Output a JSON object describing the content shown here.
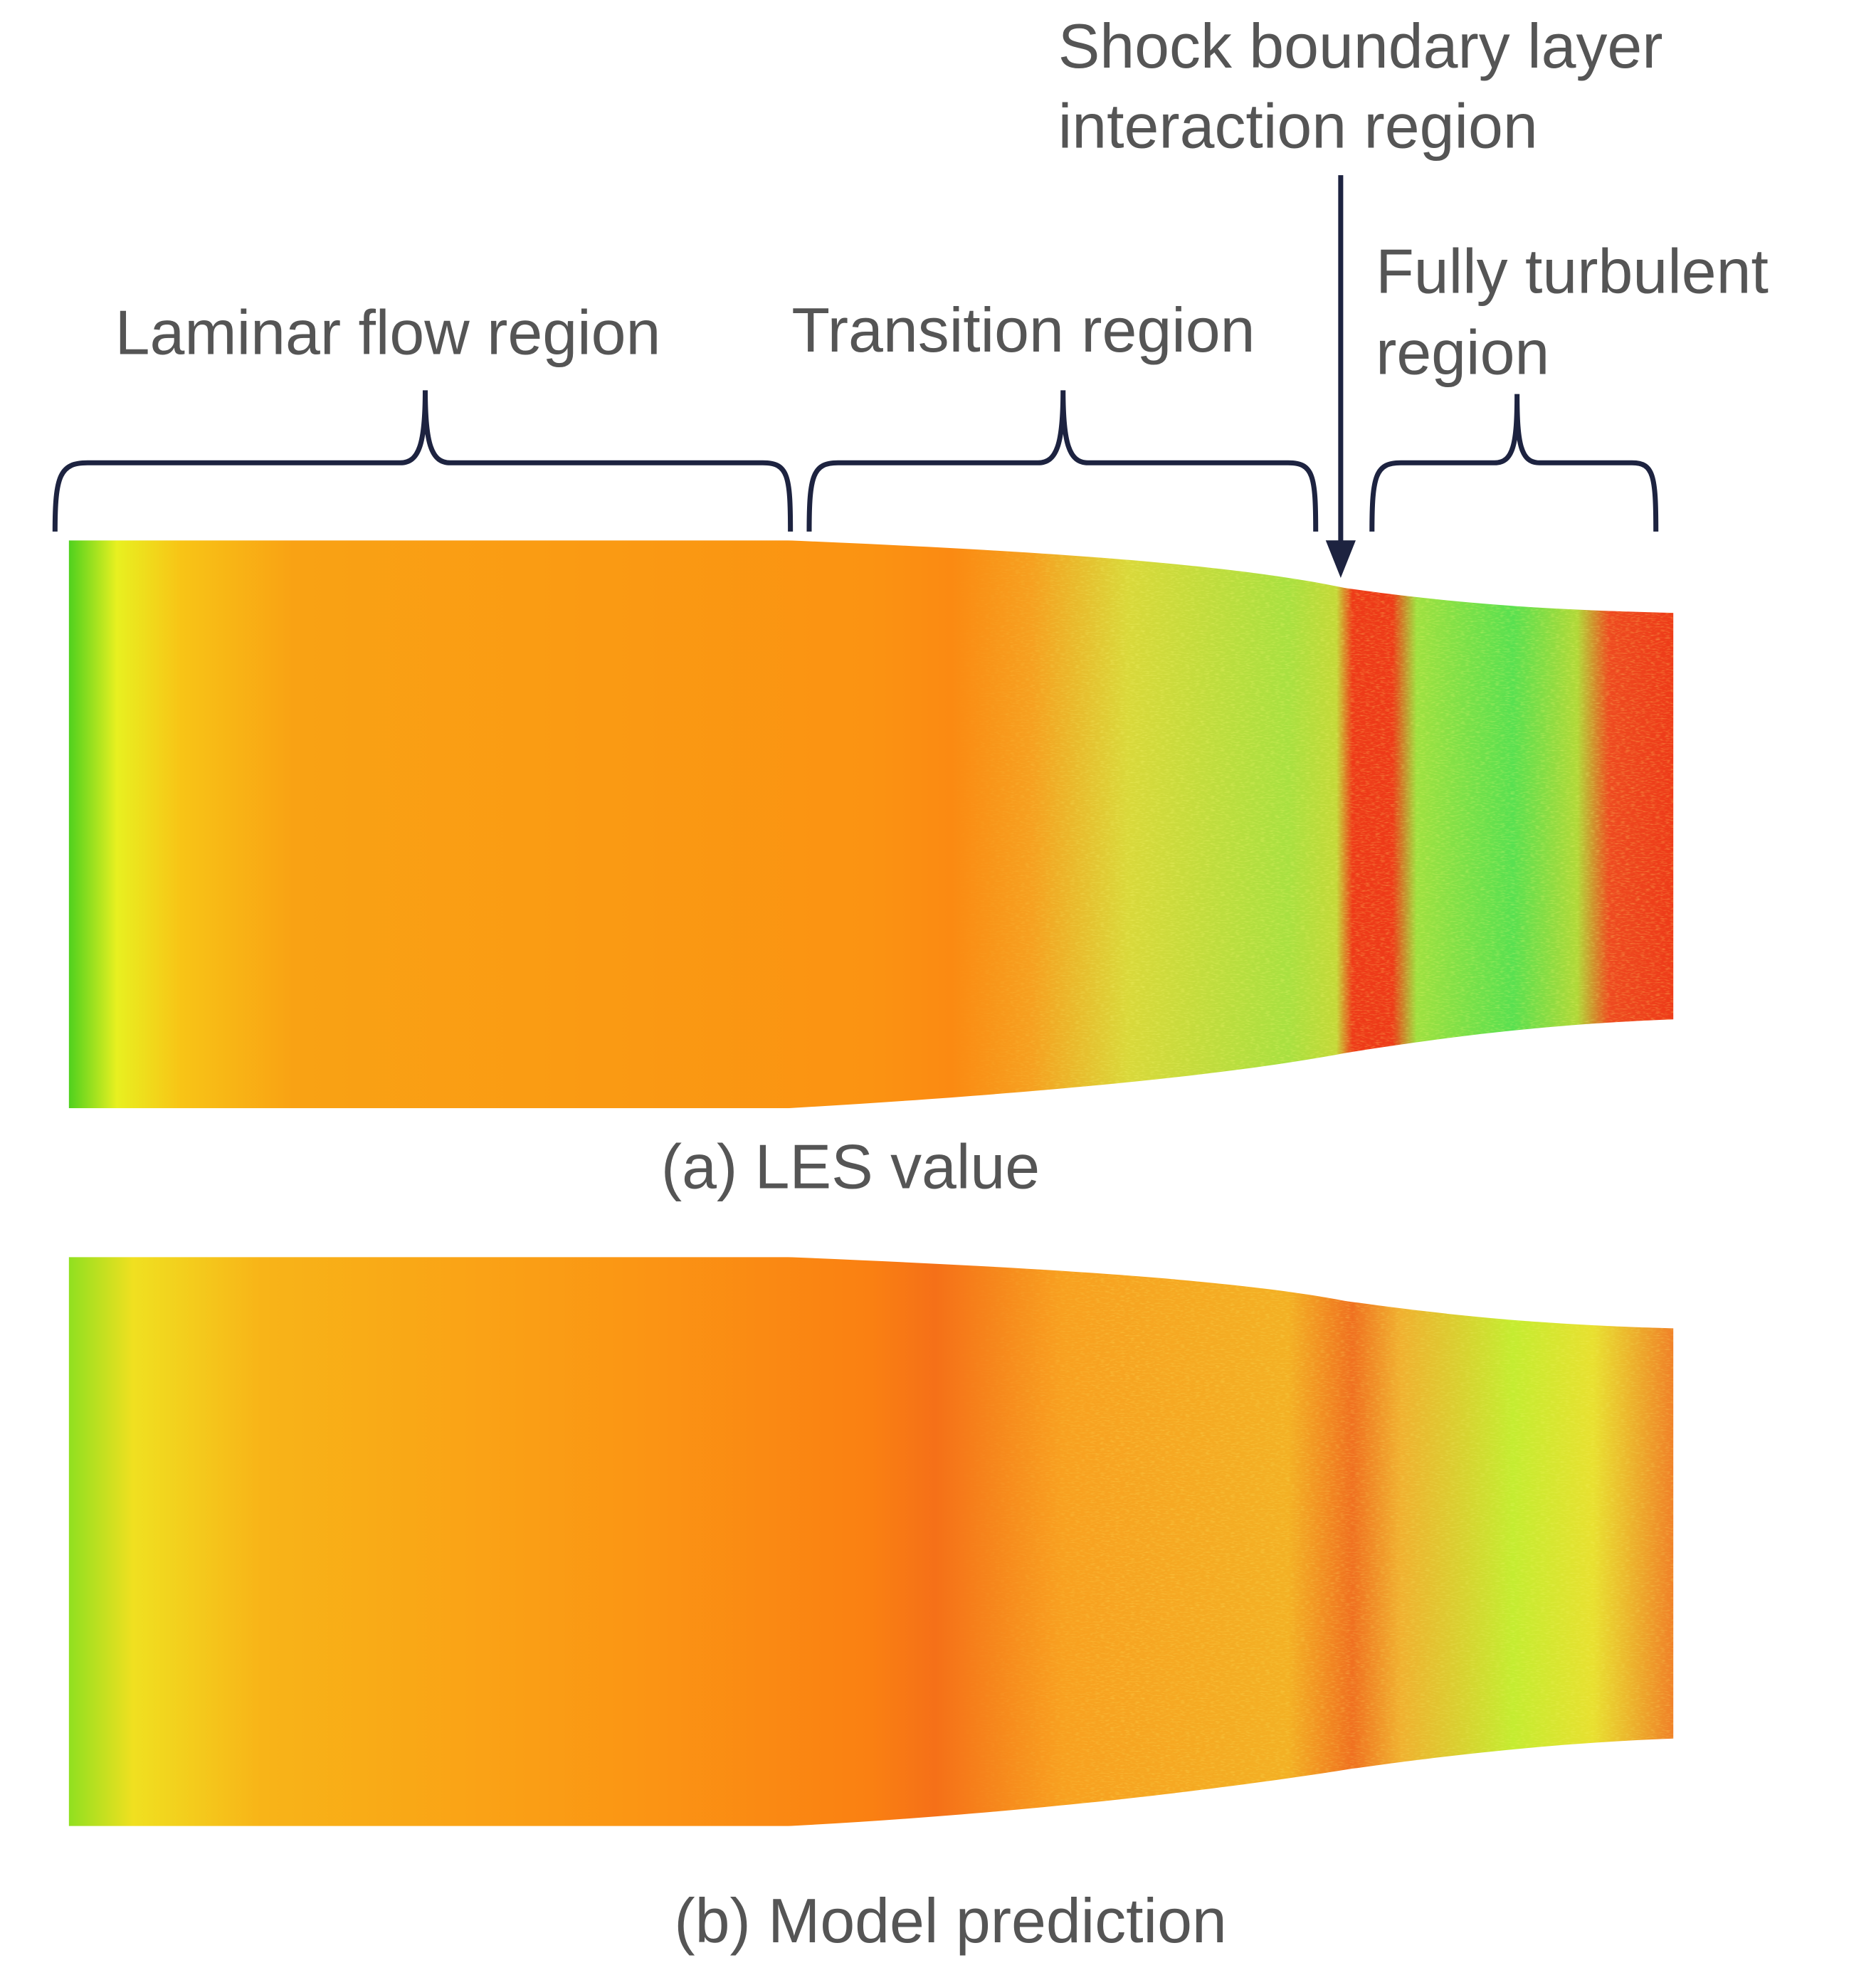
{
  "annotations": {
    "laminar": "Laminar flow region",
    "transition": "Transition region",
    "shock": [
      "Shock boundary layer",
      "interaction region"
    ],
    "turbulent": [
      "Fully turbulent",
      "region"
    ]
  },
  "panels": [
    {
      "caption": "(a) LES value"
    },
    {
      "caption": "(b) Model prediction"
    }
  ]
}
